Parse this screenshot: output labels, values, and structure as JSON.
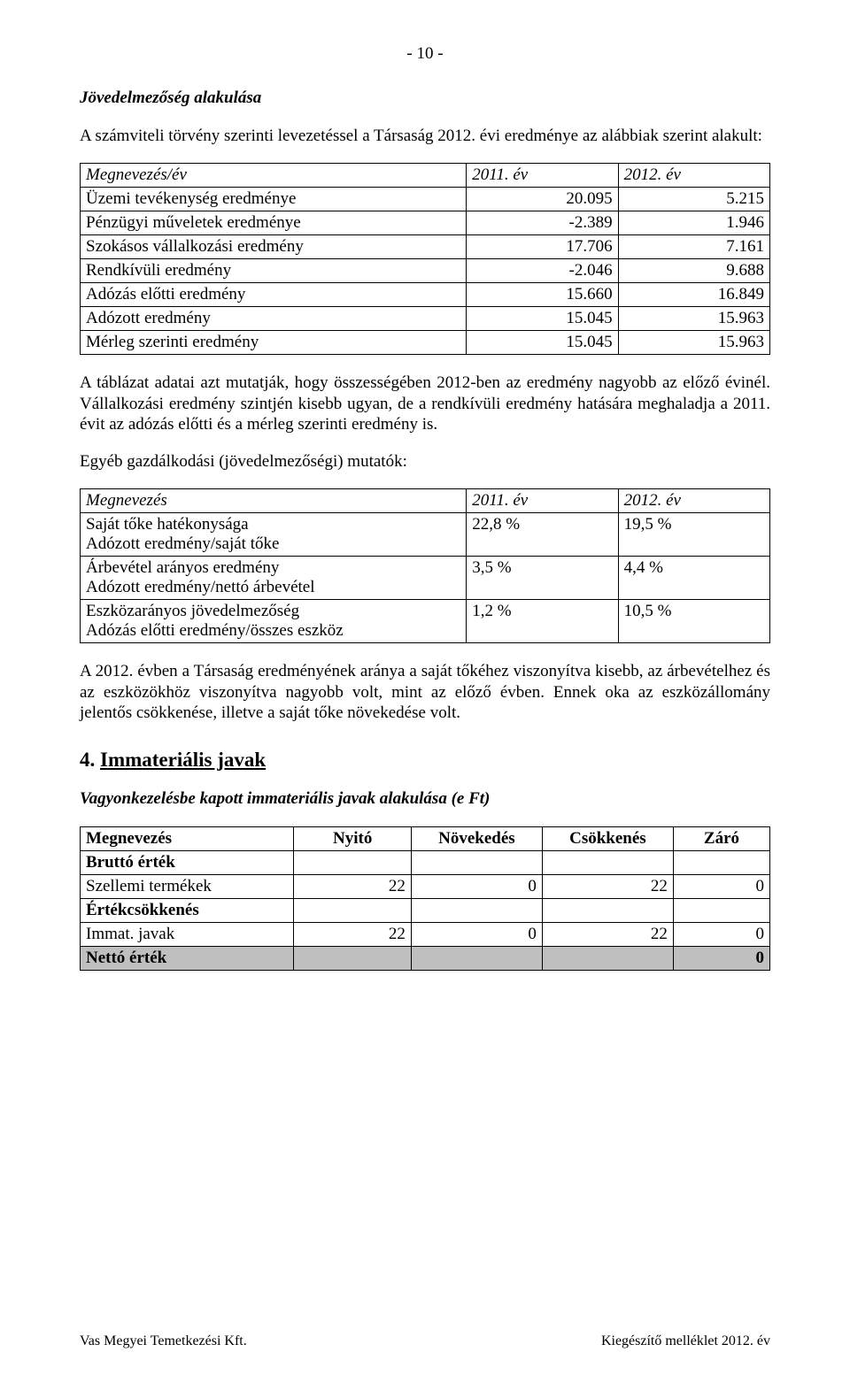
{
  "page_number": "- 10 -",
  "section1": {
    "title": "Jövedelmezőség alakulása",
    "intro": "A számviteli törvény szerinti levezetéssel a Társaság 2012. évi eredménye az alábbiak szerint alakult:"
  },
  "table1": {
    "header": {
      "c1": "Megnevezés/év",
      "c2": "2011. év",
      "c3": "2012. év"
    },
    "rows": [
      {
        "label": "Üzemi tevékenység eredménye",
        "y2011": "20.095",
        "y2012": "5.215"
      },
      {
        "label": "Pénzügyi műveletek eredménye",
        "y2011": "-2.389",
        "y2012": "1.946"
      },
      {
        "label": "Szokásos vállalkozási eredmény",
        "y2011": "17.706",
        "y2012": "7.161"
      },
      {
        "label": "Rendkívüli eredmény",
        "y2011": "-2.046",
        "y2012": "9.688"
      },
      {
        "label": "Adózás előtti eredmény",
        "y2011": "15.660",
        "y2012": "16.849"
      },
      {
        "label": "Adózott eredmény",
        "y2011": "15.045",
        "y2012": "15.963"
      },
      {
        "label": "Mérleg szerinti eredmény",
        "y2011": "15.045",
        "y2012": "15.963"
      }
    ]
  },
  "para_after_t1": "A táblázat adatai azt mutatják, hogy összességében 2012-ben az eredmény nagyobb az előző évinél. Vállalkozási eredmény szintjén kisebb ugyan, de a rendkívüli eredmény hatására meghaladja a 2011. évit az adózás előtti és a mérleg szerinti eredmény is.",
  "para_t2_intro": "Egyéb gazdálkodási (jövedelmezőségi) mutatók:",
  "table2": {
    "header": {
      "c1": "Megnevezés",
      "c2": "2011. év",
      "c3": "2012. év"
    },
    "rows": [
      {
        "label1": "Saját tőke hatékonysága",
        "label2": "Adózott eredmény/saját tőke",
        "y2011": "22,8 %",
        "y2012": "19,5 %"
      },
      {
        "label1": "Árbevétel arányos eredmény",
        "label2": "Adózott eredmény/nettó árbevétel",
        "y2011": "3,5 %",
        "y2012": "4,4 %"
      },
      {
        "label1": "Eszközarányos jövedelmezőség",
        "label2": "Adózás előtti eredmény/összes eszköz",
        "y2011": "1,2 %",
        "y2012": "10,5 %"
      }
    ]
  },
  "para_after_t2": "A 2012. évben  a Társaság eredményének aránya a saját tőkéhez viszonyítva kisebb, az árbevételhez és az eszközökhöz viszonyítva nagyobb volt, mint az előző évben. Ennek oka az eszközállomány jelentős csökkenése, illetve a saját tőke növekedése volt.",
  "section4": {
    "number": "4.",
    "title": "Immateriális javak",
    "subtitle": "Vagyonkezelésbe kapott immateriális javak alakulása (e Ft)"
  },
  "table3": {
    "header": {
      "c1": "Megnevezés",
      "c2": "Nyitó",
      "c3": "Növekedés",
      "c4": "Csökkenés",
      "c5": "Záró"
    },
    "rows": [
      {
        "bold": true,
        "label": "Bruttó érték",
        "v": [
          "",
          "",
          "",
          ""
        ]
      },
      {
        "bold": false,
        "label": "Szellemi termékek",
        "v": [
          "22",
          "0",
          "22",
          "0"
        ]
      },
      {
        "bold": true,
        "label": "Értékcsökkenés",
        "v": [
          "",
          "",
          "",
          ""
        ]
      },
      {
        "bold": false,
        "label": "Immat. javak",
        "v": [
          "22",
          "0",
          "22",
          "0"
        ]
      },
      {
        "bold": true,
        "grey": true,
        "label": "Nettó érték",
        "v": [
          "",
          "",
          "",
          "0"
        ]
      }
    ]
  },
  "footer": {
    "left": "Vas Megyei Temetkezési Kft.",
    "right": "Kiegészítő melléklet 2012. év"
  }
}
